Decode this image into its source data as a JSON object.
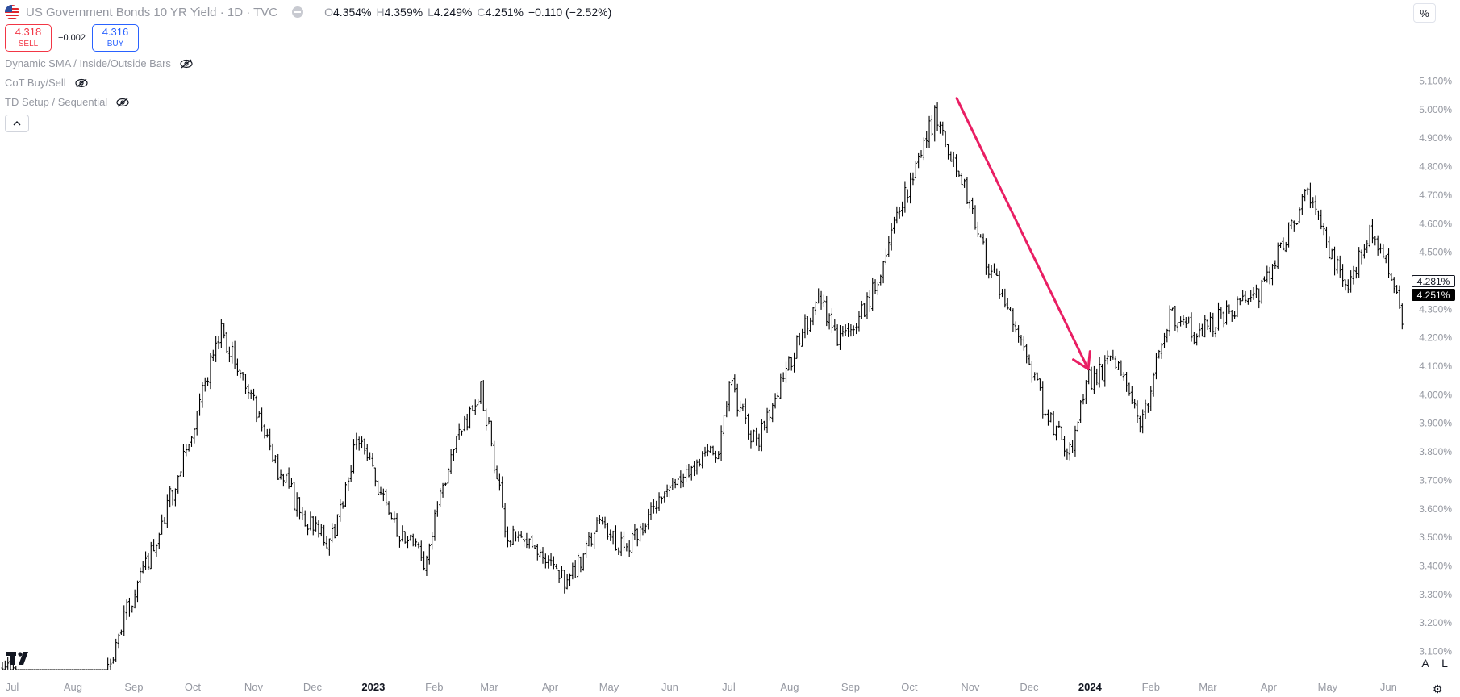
{
  "header": {
    "title": "US Government Bonds 10 YR Yield · 1D · TVC",
    "ohlc": [
      {
        "key": "O",
        "value": "4.354%"
      },
      {
        "key": "H",
        "value": "4.359%"
      },
      {
        "key": "L",
        "value": "4.249%"
      },
      {
        "key": "C",
        "value": "4.251%"
      }
    ],
    "change": "−0.110 (−2.52%)"
  },
  "trade": {
    "sell_price": "4.318",
    "sell_label": "SELL",
    "spread": "−0.002",
    "buy_price": "4.316",
    "buy_label": "BUY"
  },
  "indicators": [
    {
      "name": "Dynamic SMA / Inside/Outside Bars"
    },
    {
      "name": "CoT Buy/Sell"
    },
    {
      "name": "TD Setup / Sequential"
    }
  ],
  "toolbar": {
    "unit_label": "%",
    "auto_label": "A",
    "log_label": "L"
  },
  "price_labels": {
    "prev": "4.281%",
    "last": "4.251%"
  },
  "colors": {
    "bars": "#000000",
    "arrow": "#e91e63",
    "axis_text": "#9598a1",
    "sell": "#f23645",
    "buy": "#2962ff"
  },
  "chart_data": {
    "type": "ohlc-bar",
    "y_scale": "linear",
    "ylim": [
      3.0,
      5.2
    ],
    "y_ticks": [
      "3.100%",
      "3.200%",
      "3.300%",
      "3.400%",
      "3.500%",
      "3.600%",
      "3.700%",
      "3.800%",
      "3.900%",
      "4.000%",
      "4.100%",
      "4.200%",
      "4.300%",
      "4.400%",
      "4.500%",
      "4.600%",
      "4.700%",
      "4.800%",
      "4.900%",
      "5.000%",
      "5.100%"
    ],
    "x_labels": [
      "Jul",
      "Aug",
      "Sep",
      "Oct",
      "Nov",
      "Dec",
      "2023",
      "Feb",
      "Mar",
      "Apr",
      "May",
      "Jun",
      "Jul",
      "Aug",
      "Sep",
      "Oct",
      "Nov",
      "Dec",
      "2024",
      "Feb",
      "Mar",
      "Apr",
      "May",
      "Jun"
    ],
    "x_bold": [
      "2023",
      "2024"
    ],
    "series": [
      {
        "values": [
          {
            "date": "2022-07-01",
            "close": 3.05
          },
          {
            "date": "2022-07-15",
            "close": 2.94
          },
          {
            "date": "2022-08-01",
            "close": 2.68
          },
          {
            "date": "2022-08-15",
            "close": 2.85
          },
          {
            "date": "2022-09-01",
            "close": 3.22
          },
          {
            "date": "2022-09-15",
            "close": 3.45
          },
          {
            "date": "2022-10-01",
            "close": 3.78
          },
          {
            "date": "2022-10-20",
            "close": 4.22
          },
          {
            "date": "2022-11-01",
            "close": 4.07
          },
          {
            "date": "2022-11-15",
            "close": 3.78
          },
          {
            "date": "2022-12-01",
            "close": 3.58
          },
          {
            "date": "2022-12-15",
            "close": 3.47
          },
          {
            "date": "2022-12-30",
            "close": 3.87
          },
          {
            "date": "2023-01-15",
            "close": 3.55
          },
          {
            "date": "2023-02-01",
            "close": 3.42
          },
          {
            "date": "2023-02-15",
            "close": 3.8
          },
          {
            "date": "2023-03-02",
            "close": 4.02
          },
          {
            "date": "2023-03-15",
            "close": 3.5
          },
          {
            "date": "2023-04-01",
            "close": 3.45
          },
          {
            "date": "2023-04-15",
            "close": 3.33
          },
          {
            "date": "2023-05-01",
            "close": 3.55
          },
          {
            "date": "2023-05-15",
            "close": 3.45
          },
          {
            "date": "2023-06-01",
            "close": 3.65
          },
          {
            "date": "2023-06-15",
            "close": 3.75
          },
          {
            "date": "2023-07-01",
            "close": 3.8
          },
          {
            "date": "2023-07-06",
            "close": 4.05
          },
          {
            "date": "2023-07-20",
            "close": 3.82
          },
          {
            "date": "2023-08-01",
            "close": 4.05
          },
          {
            "date": "2023-08-21",
            "close": 4.34
          },
          {
            "date": "2023-09-01",
            "close": 4.18
          },
          {
            "date": "2023-09-15",
            "close": 4.32
          },
          {
            "date": "2023-10-01",
            "close": 4.65
          },
          {
            "date": "2023-10-19",
            "close": 4.98
          },
          {
            "date": "2023-11-01",
            "close": 4.76
          },
          {
            "date": "2023-11-15",
            "close": 4.45
          },
          {
            "date": "2023-12-01",
            "close": 4.22
          },
          {
            "date": "2023-12-15",
            "close": 3.92
          },
          {
            "date": "2023-12-27",
            "close": 3.8
          },
          {
            "date": "2024-01-05",
            "close": 4.05
          },
          {
            "date": "2024-01-19",
            "close": 4.12
          },
          {
            "date": "2024-02-01",
            "close": 3.88
          },
          {
            "date": "2024-02-15",
            "close": 4.28
          },
          {
            "date": "2024-03-01",
            "close": 4.22
          },
          {
            "date": "2024-03-15",
            "close": 4.28
          },
          {
            "date": "2024-04-01",
            "close": 4.35
          },
          {
            "date": "2024-04-25",
            "close": 4.7
          },
          {
            "date": "2024-05-15",
            "close": 4.38
          },
          {
            "date": "2024-05-29",
            "close": 4.58
          },
          {
            "date": "2024-06-07",
            "close": 4.43
          },
          {
            "date": "2024-06-14",
            "close": 4.25
          }
        ]
      }
    ],
    "annotations": [
      {
        "type": "arrow",
        "from": {
          "date": "2023-10-30",
          "value": 5.04
        },
        "to": {
          "date": "2024-01-05",
          "value": 4.09
        }
      }
    ]
  }
}
